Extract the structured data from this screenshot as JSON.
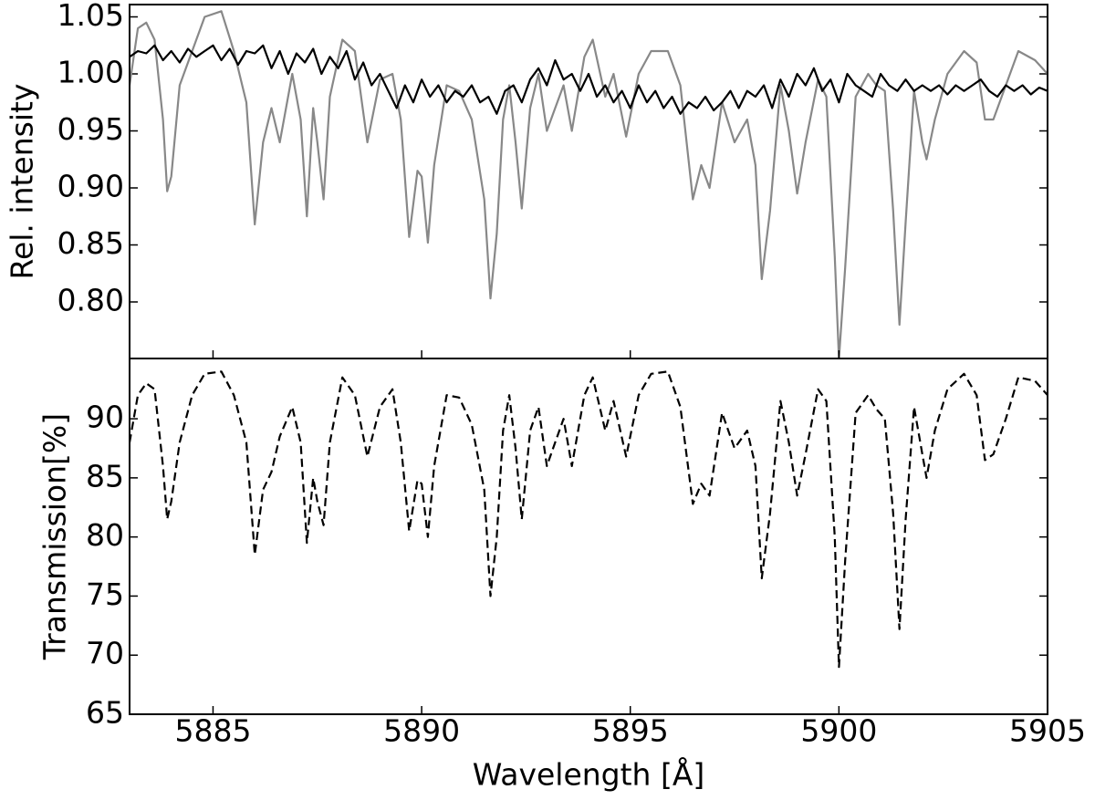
{
  "chart_data": [
    {
      "type": "line",
      "ylabel": "Rel. intensity",
      "xlim": [
        5883,
        5905
      ],
      "ylim": [
        0.7504,
        1.0608
      ],
      "yticks": [
        {
          "value": 0.8,
          "label": "0.80"
        },
        0.85,
        {
          "value": 0.9,
          "label": "0.90"
        },
        0.95,
        {
          "value": 1.0,
          "label": "1.00"
        },
        1.05
      ],
      "series": [
        {
          "color": "#888888",
          "linestyle": "solid",
          "x": [
            5883.0,
            5883.2,
            5883.4,
            5883.6,
            5883.8,
            5883.9,
            5884.0,
            5884.2,
            5884.5,
            5884.8,
            5885.2,
            5885.5,
            5885.8,
            5886.0,
            5886.2,
            5886.4,
            5886.6,
            5886.9,
            5887.1,
            5887.25,
            5887.4,
            5887.5,
            5887.65,
            5887.8,
            5888.1,
            5888.4,
            5888.7,
            5889.0,
            5889.3,
            5889.5,
            5889.7,
            5889.9,
            5890.0,
            5890.15,
            5890.3,
            5890.6,
            5890.9,
            5891.2,
            5891.5,
            5891.65,
            5891.8,
            5891.95,
            5892.1,
            5892.25,
            5892.4,
            5892.6,
            5892.8,
            5893.0,
            5893.2,
            5893.4,
            5893.6,
            5893.9,
            5894.1,
            5894.4,
            5894.6,
            5894.9,
            5895.2,
            5895.5,
            5895.9,
            5896.2,
            5896.5,
            5896.7,
            5896.9,
            5897.2,
            5897.5,
            5897.8,
            5898.0,
            5898.15,
            5898.35,
            5898.6,
            5898.8,
            5899.0,
            5899.2,
            5899.5,
            5899.7,
            5899.9,
            5900.0,
            5900.15,
            5900.4,
            5900.7,
            5900.9,
            5901.1,
            5901.3,
            5901.45,
            5901.6,
            5901.8,
            5902.0,
            5902.1,
            5902.3,
            5902.6,
            5903.0,
            5903.3,
            5903.5,
            5903.7,
            5904.0,
            5904.3,
            5904.7,
            5905.0
          ],
          "values": [
            0.99,
            1.04,
            1.045,
            1.03,
            0.96,
            0.897,
            0.91,
            0.99,
            1.02,
            1.05,
            1.055,
            1.02,
            0.975,
            0.868,
            0.94,
            0.97,
            0.94,
            1.0,
            0.96,
            0.875,
            0.97,
            0.94,
            0.89,
            0.98,
            1.03,
            1.02,
            0.94,
            0.995,
            1.0,
            0.96,
            0.857,
            0.915,
            0.91,
            0.852,
            0.92,
            0.99,
            0.985,
            0.96,
            0.89,
            0.803,
            0.86,
            0.96,
            0.99,
            0.94,
            0.882,
            0.97,
            1.0,
            0.95,
            0.97,
            0.99,
            0.95,
            1.015,
            1.03,
            0.98,
            1.0,
            0.945,
            1.0,
            1.02,
            1.02,
            0.99,
            0.89,
            0.92,
            0.9,
            0.975,
            0.94,
            0.96,
            0.92,
            0.82,
            0.88,
            0.99,
            0.95,
            0.895,
            0.94,
            0.995,
            0.98,
            0.84,
            0.75,
            0.83,
            0.98,
            1.0,
            0.99,
            0.985,
            0.88,
            0.78,
            0.87,
            0.985,
            0.94,
            0.925,
            0.96,
            1.0,
            1.02,
            1.01,
            0.96,
            0.96,
            0.99,
            1.02,
            1.012,
            1.0
          ]
        },
        {
          "color": "#000000",
          "linestyle": "solid",
          "x": [
            5883.0,
            5883.2,
            5883.4,
            5883.6,
            5883.8,
            5884.0,
            5884.2,
            5884.4,
            5884.6,
            5884.8,
            5885.0,
            5885.2,
            5885.4,
            5885.6,
            5885.8,
            5886.0,
            5886.2,
            5886.4,
            5886.6,
            5886.8,
            5887.0,
            5887.2,
            5887.4,
            5887.6,
            5887.8,
            5888.0,
            5888.2,
            5888.4,
            5888.6,
            5888.8,
            5889.0,
            5889.2,
            5889.4,
            5889.6,
            5889.8,
            5890.0,
            5890.2,
            5890.4,
            5890.6,
            5890.8,
            5891.0,
            5891.2,
            5891.4,
            5891.6,
            5891.8,
            5892.0,
            5892.2,
            5892.4,
            5892.6,
            5892.8,
            5893.0,
            5893.2,
            5893.4,
            5893.6,
            5893.8,
            5894.0,
            5894.2,
            5894.4,
            5894.6,
            5894.8,
            5895.0,
            5895.2,
            5895.4,
            5895.6,
            5895.8,
            5896.0,
            5896.2,
            5896.4,
            5896.6,
            5896.8,
            5897.0,
            5897.2,
            5897.4,
            5897.6,
            5897.8,
            5898.0,
            5898.2,
            5898.4,
            5898.6,
            5898.8,
            5899.0,
            5899.2,
            5899.4,
            5899.6,
            5899.8,
            5900.0,
            5900.2,
            5900.4,
            5900.6,
            5900.8,
            5901.0,
            5901.2,
            5901.4,
            5901.6,
            5901.8,
            5902.0,
            5902.2,
            5902.4,
            5902.6,
            5902.8,
            5903.0,
            5903.2,
            5903.4,
            5903.6,
            5903.8,
            5904.0,
            5904.2,
            5904.4,
            5904.6,
            5904.8,
            5905.0
          ],
          "values": [
            1.015,
            1.02,
            1.018,
            1.025,
            1.012,
            1.02,
            1.01,
            1.022,
            1.015,
            1.02,
            1.025,
            1.012,
            1.022,
            1.008,
            1.02,
            1.018,
            1.025,
            1.005,
            1.02,
            1.0,
            1.018,
            1.01,
            1.022,
            1.0,
            1.015,
            1.005,
            1.02,
            0.995,
            1.01,
            0.99,
            1.0,
            0.985,
            0.97,
            0.99,
            0.975,
            0.995,
            0.98,
            0.99,
            0.975,
            0.985,
            0.98,
            0.99,
            0.975,
            0.98,
            0.965,
            0.985,
            0.99,
            0.975,
            0.995,
            1.005,
            0.99,
            1.012,
            0.995,
            1.0,
            0.985,
            1.0,
            0.98,
            0.99,
            0.975,
            0.985,
            0.97,
            0.99,
            0.975,
            0.985,
            0.97,
            0.98,
            0.965,
            0.975,
            0.97,
            0.98,
            0.968,
            0.975,
            0.985,
            0.97,
            0.985,
            0.98,
            0.99,
            0.97,
            0.995,
            0.98,
            1.0,
            0.99,
            1.005,
            0.985,
            0.995,
            0.975,
            1.0,
            0.99,
            0.985,
            0.98,
            1.0,
            0.99,
            0.985,
            0.995,
            0.985,
            0.99,
            0.985,
            0.99,
            0.982,
            0.99,
            0.985,
            0.99,
            0.995,
            0.985,
            0.98,
            0.99,
            0.985,
            0.99,
            0.982,
            0.988,
            0.985
          ]
        }
      ]
    },
    {
      "type": "line",
      "ylabel": "Transmission[%]",
      "xlabel": "Wavelength [Å]",
      "xlim": [
        5883,
        5905
      ],
      "ylim": [
        65,
        95.1
      ],
      "xticks": [
        5885,
        5890,
        5895,
        5900,
        5905
      ],
      "yticks": [
        65,
        70,
        75,
        80,
        85,
        90
      ],
      "series": [
        {
          "color": "#000000",
          "linestyle": "dashed",
          "x": [
            5883.0,
            5883.2,
            5883.4,
            5883.6,
            5883.8,
            5883.9,
            5884.0,
            5884.2,
            5884.5,
            5884.8,
            5885.2,
            5885.5,
            5885.8,
            5886.0,
            5886.2,
            5886.4,
            5886.6,
            5886.9,
            5887.1,
            5887.25,
            5887.4,
            5887.5,
            5887.65,
            5887.8,
            5888.1,
            5888.4,
            5888.7,
            5889.0,
            5889.3,
            5889.5,
            5889.7,
            5889.9,
            5890.0,
            5890.15,
            5890.3,
            5890.6,
            5890.9,
            5891.2,
            5891.5,
            5891.65,
            5891.8,
            5891.95,
            5892.1,
            5892.25,
            5892.4,
            5892.6,
            5892.8,
            5893.0,
            5893.2,
            5893.4,
            5893.6,
            5893.9,
            5894.1,
            5894.4,
            5894.6,
            5894.9,
            5895.2,
            5895.5,
            5895.9,
            5896.2,
            5896.5,
            5896.7,
            5896.9,
            5897.2,
            5897.5,
            5897.8,
            5898.0,
            5898.15,
            5898.35,
            5898.6,
            5898.8,
            5899.0,
            5899.2,
            5899.5,
            5899.7,
            5899.9,
            5900.0,
            5900.15,
            5900.4,
            5900.7,
            5900.9,
            5901.1,
            5901.3,
            5901.45,
            5901.6,
            5901.8,
            5902.0,
            5902.1,
            5902.3,
            5902.6,
            5903.0,
            5903.3,
            5903.5,
            5903.7,
            5904.0,
            5904.3,
            5904.7,
            5905.0
          ],
          "values": [
            88,
            92,
            93,
            92.5,
            86,
            81.5,
            83,
            88,
            92,
            93.8,
            94,
            92,
            88,
            78.5,
            84,
            85.5,
            88.5,
            91,
            88,
            79.5,
            85,
            83,
            81,
            88,
            93.5,
            92,
            86.8,
            91,
            92.5,
            88,
            80.5,
            84.8,
            84.5,
            80,
            86,
            92,
            91.8,
            89.5,
            84,
            75,
            80,
            89,
            92,
            87.5,
            81.5,
            89,
            91,
            86,
            88,
            90,
            86,
            92,
            93.5,
            89,
            91.5,
            86.8,
            92,
            93.8,
            94,
            91,
            82.8,
            84.5,
            83.5,
            90.5,
            87.5,
            89,
            86,
            76.5,
            82,
            91.5,
            88,
            83.5,
            87,
            92.5,
            91.5,
            80,
            69,
            78,
            90.5,
            92,
            90.8,
            90,
            82,
            72.2,
            81.5,
            91,
            87,
            85,
            89,
            92.5,
            93.8,
            92,
            86.5,
            87,
            90,
            93.5,
            93.2,
            92
          ]
        }
      ]
    }
  ]
}
